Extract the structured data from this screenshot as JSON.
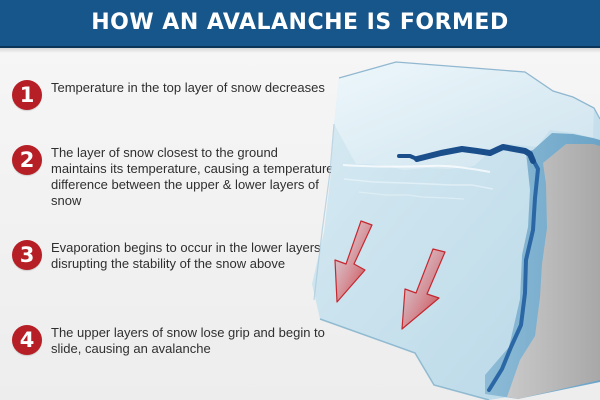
{
  "header": {
    "title": "HOW AN AVALANCHE IS FORMED"
  },
  "steps": [
    {
      "number": "1",
      "text": "Temperature in the top layer of snow decreases"
    },
    {
      "number": "2",
      "text": "The layer of snow closest to the ground maintains its temperature, causing a temperature difference between the upper & lower layers of snow"
    },
    {
      "number": "3",
      "text": "Evaporation begins to occur in the lower layers disrupting the stability of the snow above"
    },
    {
      "number": "4",
      "text": "The upper layers of snow lose grip and begin to slide, causing an avalanche"
    }
  ],
  "colors": {
    "banner": "#17568b",
    "badge": "#b51f25",
    "snow_light": "#dfeff6",
    "snow_mid": "#c6e0ec",
    "snow_blue": "#7db0cf",
    "ground_gray": "#b5b5b5",
    "fracture": "#1b4f8c",
    "arrow_red": "#c5282f"
  },
  "icons": {
    "step_badges": "circle-number-icon",
    "arrows": "downhill-arrow-icon",
    "illustration": "snow-slope-cross-section"
  }
}
